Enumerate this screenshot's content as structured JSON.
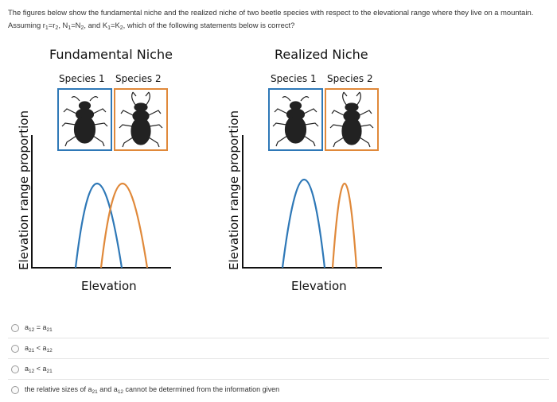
{
  "question": {
    "part1": "The figures below show the fundamental niche and the realized niche of two beetle species with respect to the elevational range where they live on a mountain. Assuming r",
    "r1": "1",
    "part2": "=r",
    "r2": "2",
    "part3": ", N",
    "n1": "1",
    "part4": "=N",
    "n2": "2",
    "part5": ", and K",
    "k1": "1",
    "part6": "=K",
    "k2": "2",
    "part7": ", which of the following statements below is correct?"
  },
  "figures": {
    "fundamental": {
      "title": "Fundamental Niche",
      "species1_label": "Species 1",
      "species2_label": "Species 2",
      "ylabel": "Elevation range proportion",
      "xlabel": "Elevation"
    },
    "realized": {
      "title": "Realized Niche",
      "species1_label": "Species 1",
      "species2_label": "Species 2",
      "ylabel": "Elevation range proportion",
      "xlabel": "Elevation"
    }
  },
  "colors": {
    "species1": "#2e78b7",
    "species2": "#e0893a",
    "axis": "#111111"
  },
  "options": [
    {
      "a": "a",
      "s1": "12",
      "rel": " = ",
      "b": "a",
      "s2": "21"
    },
    {
      "a": "a",
      "s1": "21",
      "rel": " < ",
      "b": "a",
      "s2": "12"
    },
    {
      "a": "a",
      "s1": "12",
      "rel": " < ",
      "b": "a",
      "s2": "21"
    },
    {
      "t1": "the relative sizes of a",
      "s1": "21",
      "t2": " and a",
      "s2": "12",
      "t3": " cannot be determined from the information given"
    }
  ]
}
